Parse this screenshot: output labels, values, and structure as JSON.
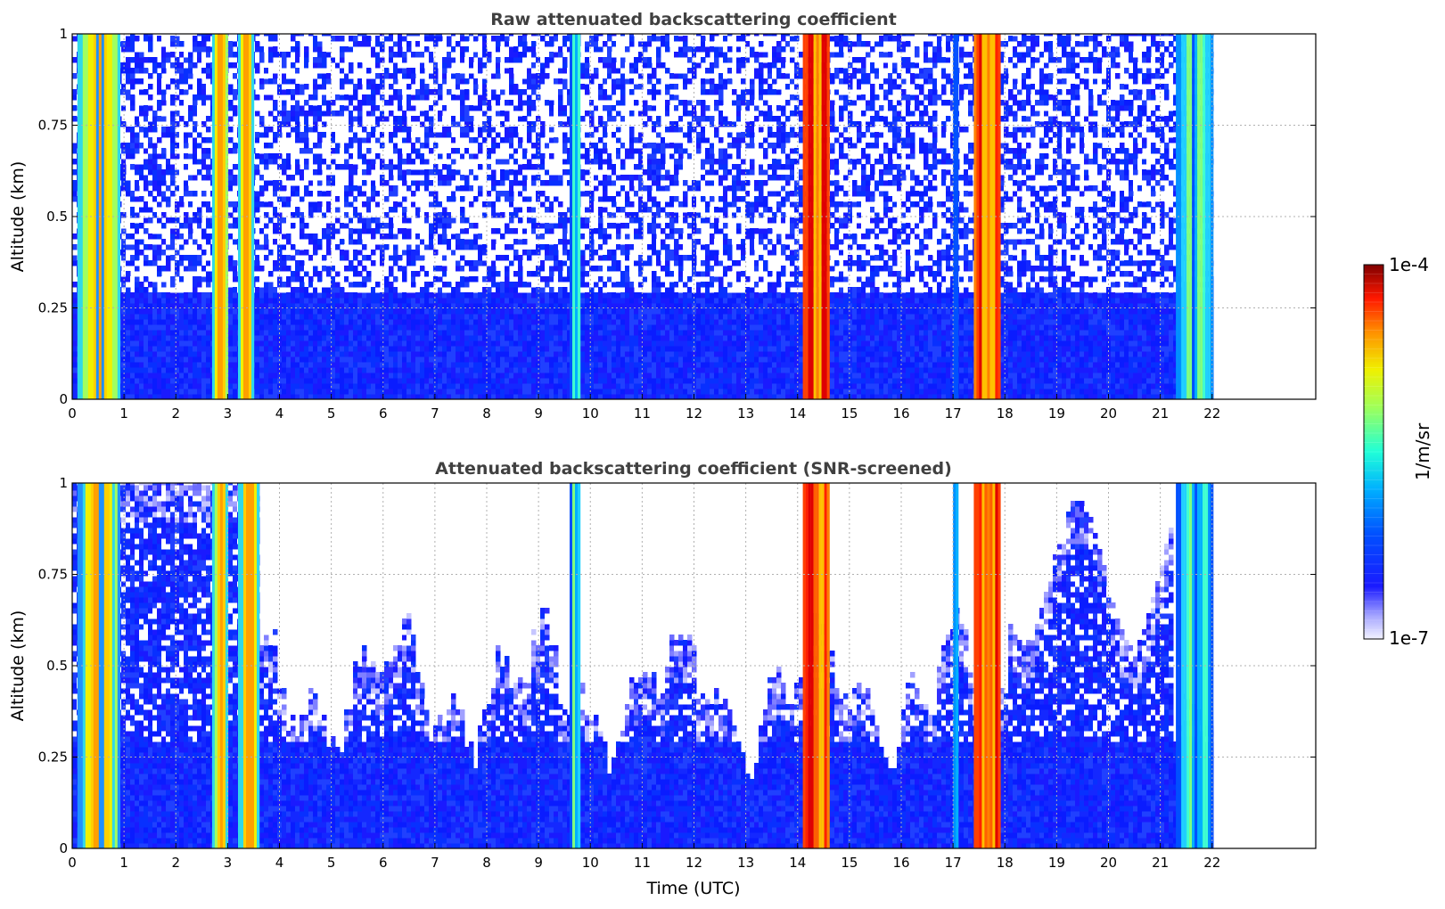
{
  "chart_data": [
    {
      "type": "heatmap",
      "title": "Raw attenuated backscattering coefficient",
      "xlabel": "",
      "ylabel": "Altitude (km)",
      "xlim": [
        0,
        24
      ],
      "ylim": [
        0,
        1
      ],
      "x_ticks": [
        0,
        1,
        2,
        3,
        4,
        5,
        6,
        7,
        8,
        9,
        10,
        11,
        12,
        13,
        14,
        15,
        16,
        17,
        18,
        19,
        20,
        21,
        22
      ],
      "y_ticks": [
        0,
        0.25,
        0.5,
        0.75,
        1
      ],
      "y_tick_labels": [
        "0",
        "0.25",
        "0.5",
        "0.75",
        "1"
      ],
      "data_end_hour": 22,
      "grid": true,
      "screened": false,
      "strong_bands": [
        {
          "start": 0.1,
          "end": 0.9,
          "level": "high"
        },
        {
          "start": 2.7,
          "end": 3.0,
          "level": "high"
        },
        {
          "start": 3.2,
          "end": 3.5,
          "level": "high"
        },
        {
          "start": 9.6,
          "end": 9.8,
          "level": "medium"
        },
        {
          "start": 14.1,
          "end": 14.6,
          "level": "very-high"
        },
        {
          "start": 17.0,
          "end": 17.1,
          "level": "medium"
        },
        {
          "start": 17.4,
          "end": 17.9,
          "level": "very-high"
        },
        {
          "start": 21.3,
          "end": 22.0,
          "level": "medium"
        }
      ]
    },
    {
      "type": "heatmap",
      "title": "Attenuated backscattering coefficient (SNR-screened)",
      "xlabel": "Time (UTC)",
      "ylabel": "Altitude (km)",
      "xlim": [
        0,
        24
      ],
      "ylim": [
        0,
        1
      ],
      "x_ticks": [
        0,
        1,
        2,
        3,
        4,
        5,
        6,
        7,
        8,
        9,
        10,
        11,
        12,
        13,
        14,
        15,
        16,
        17,
        18,
        19,
        20,
        21,
        22
      ],
      "y_ticks": [
        0,
        0.25,
        0.5,
        0.75,
        1
      ],
      "y_tick_labels": [
        "0",
        "0.25",
        "0.5",
        "0.75",
        "1"
      ],
      "data_end_hour": 22,
      "grid": true,
      "screened": true,
      "strong_bands": [
        {
          "start": 0.1,
          "end": 0.9,
          "level": "high"
        },
        {
          "start": 2.7,
          "end": 3.0,
          "level": "high"
        },
        {
          "start": 3.2,
          "end": 3.6,
          "level": "high"
        },
        {
          "start": 9.6,
          "end": 9.8,
          "level": "medium"
        },
        {
          "start": 14.1,
          "end": 14.6,
          "level": "very-high"
        },
        {
          "start": 17.0,
          "end": 17.1,
          "level": "medium"
        },
        {
          "start": 17.4,
          "end": 17.9,
          "level": "very-high"
        },
        {
          "start": 21.3,
          "end": 22.0,
          "level": "medium"
        }
      ]
    }
  ],
  "colorbar": {
    "label": "1/m/sr",
    "min_label": "1e-7",
    "max_label": "1e-4",
    "colormap": "jet",
    "scale": "log"
  }
}
